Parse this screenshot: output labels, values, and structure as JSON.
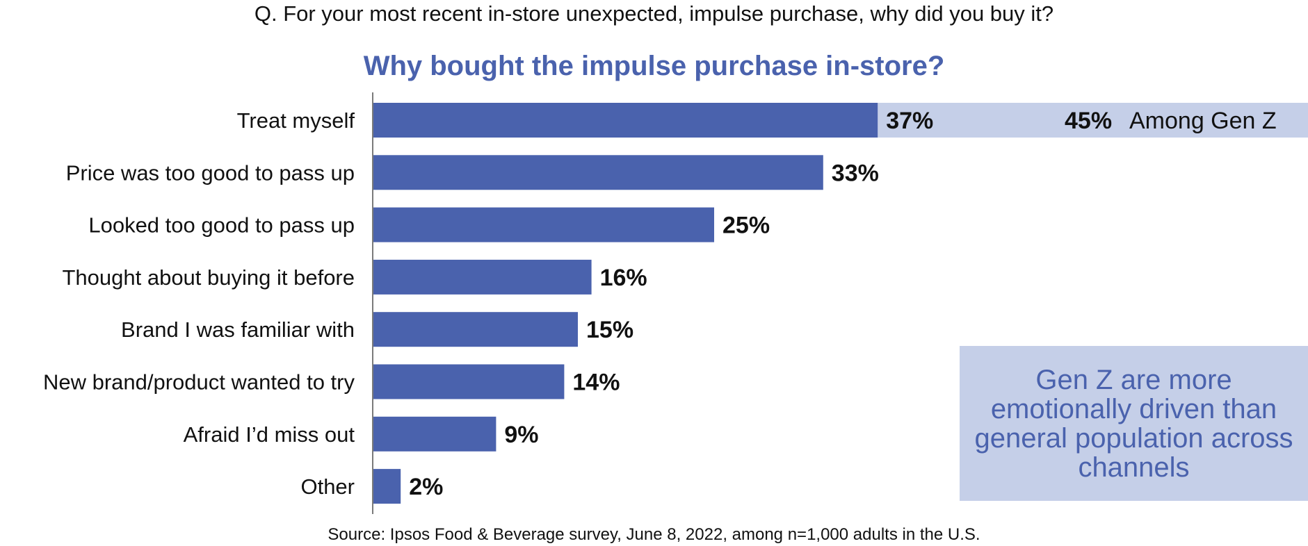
{
  "question": "Q. For your most recent in-store unexpected, impulse purchase, why did you buy it?",
  "source": "Source: Ipsos Food & Beverage survey, June 8, 2022, among n=1,000 adults in the U.S.",
  "colors": {
    "bar": "#4a62ad",
    "highlight": "#c5cfe8",
    "title": "#4a62ad"
  },
  "chart_data": {
    "type": "bar",
    "orientation": "horizontal",
    "title": "Why bought the impulse purchase in-store?",
    "xlabel": "",
    "ylabel": "",
    "xlim": [
      0,
      45
    ],
    "grid": false,
    "categories": [
      "Treat myself",
      "Price was too good to pass up",
      "Looked too good to pass up",
      "Thought about buying it before",
      "Brand I was familiar with",
      "New brand/product wanted to try",
      "Afraid I’d miss out",
      "Other"
    ],
    "values": [
      37,
      33,
      25,
      16,
      15,
      14,
      9,
      2
    ],
    "value_labels": [
      "37%",
      "33%",
      "25%",
      "16%",
      "15%",
      "14%",
      "9%",
      "2%"
    ],
    "annotations": [
      {
        "category": "Treat myself",
        "value": 45,
        "value_label": "45%",
        "text": "Among Gen Z"
      }
    ]
  },
  "callout": {
    "text": "Gen Z are more emotionally driven than general population across channels"
  }
}
